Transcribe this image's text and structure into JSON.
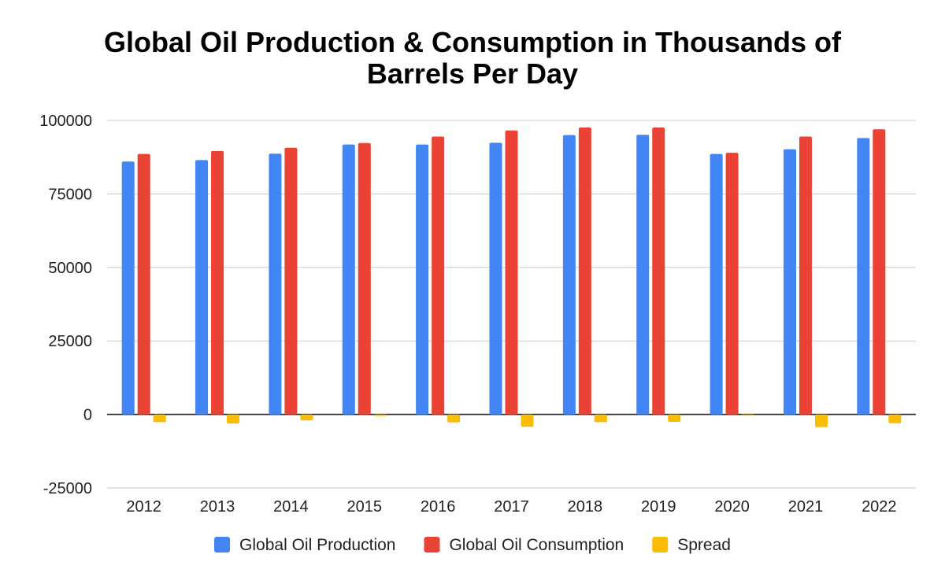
{
  "chart_data": {
    "type": "bar",
    "title_lines": [
      "Global Oil Production & Consumption in Thousands of",
      "Barrels Per Day"
    ],
    "xlabel": "",
    "ylabel": "",
    "categories": [
      "2012",
      "2013",
      "2014",
      "2015",
      "2016",
      "2017",
      "2018",
      "2019",
      "2020",
      "2021",
      "2022"
    ],
    "series": [
      {
        "name": "Global Oil Production",
        "color": "#4285f4",
        "values": [
          86000,
          86500,
          88700,
          91800,
          91800,
          92400,
          95000,
          95100,
          88600,
          90200,
          94000
        ]
      },
      {
        "name": "Global Oil Consumption",
        "color": "#ea4335",
        "values": [
          88600,
          89600,
          90700,
          92300,
          94500,
          96600,
          97600,
          97600,
          89000,
          94500,
          97000
        ]
      },
      {
        "name": "Spread",
        "color": "#fbbc04",
        "values": [
          -2600,
          -3100,
          -2000,
          -500,
          -2700,
          -4200,
          -2600,
          -2500,
          -400,
          -4300,
          -3000
        ]
      }
    ],
    "ylim": [
      -25000,
      100000
    ],
    "yticks": [
      "100000",
      "75000",
      "50000",
      "25000",
      "0",
      "-25000"
    ],
    "ytick_values": [
      100000,
      75000,
      50000,
      25000,
      0,
      -25000
    ],
    "grid": true,
    "legend_position": "bottom"
  }
}
